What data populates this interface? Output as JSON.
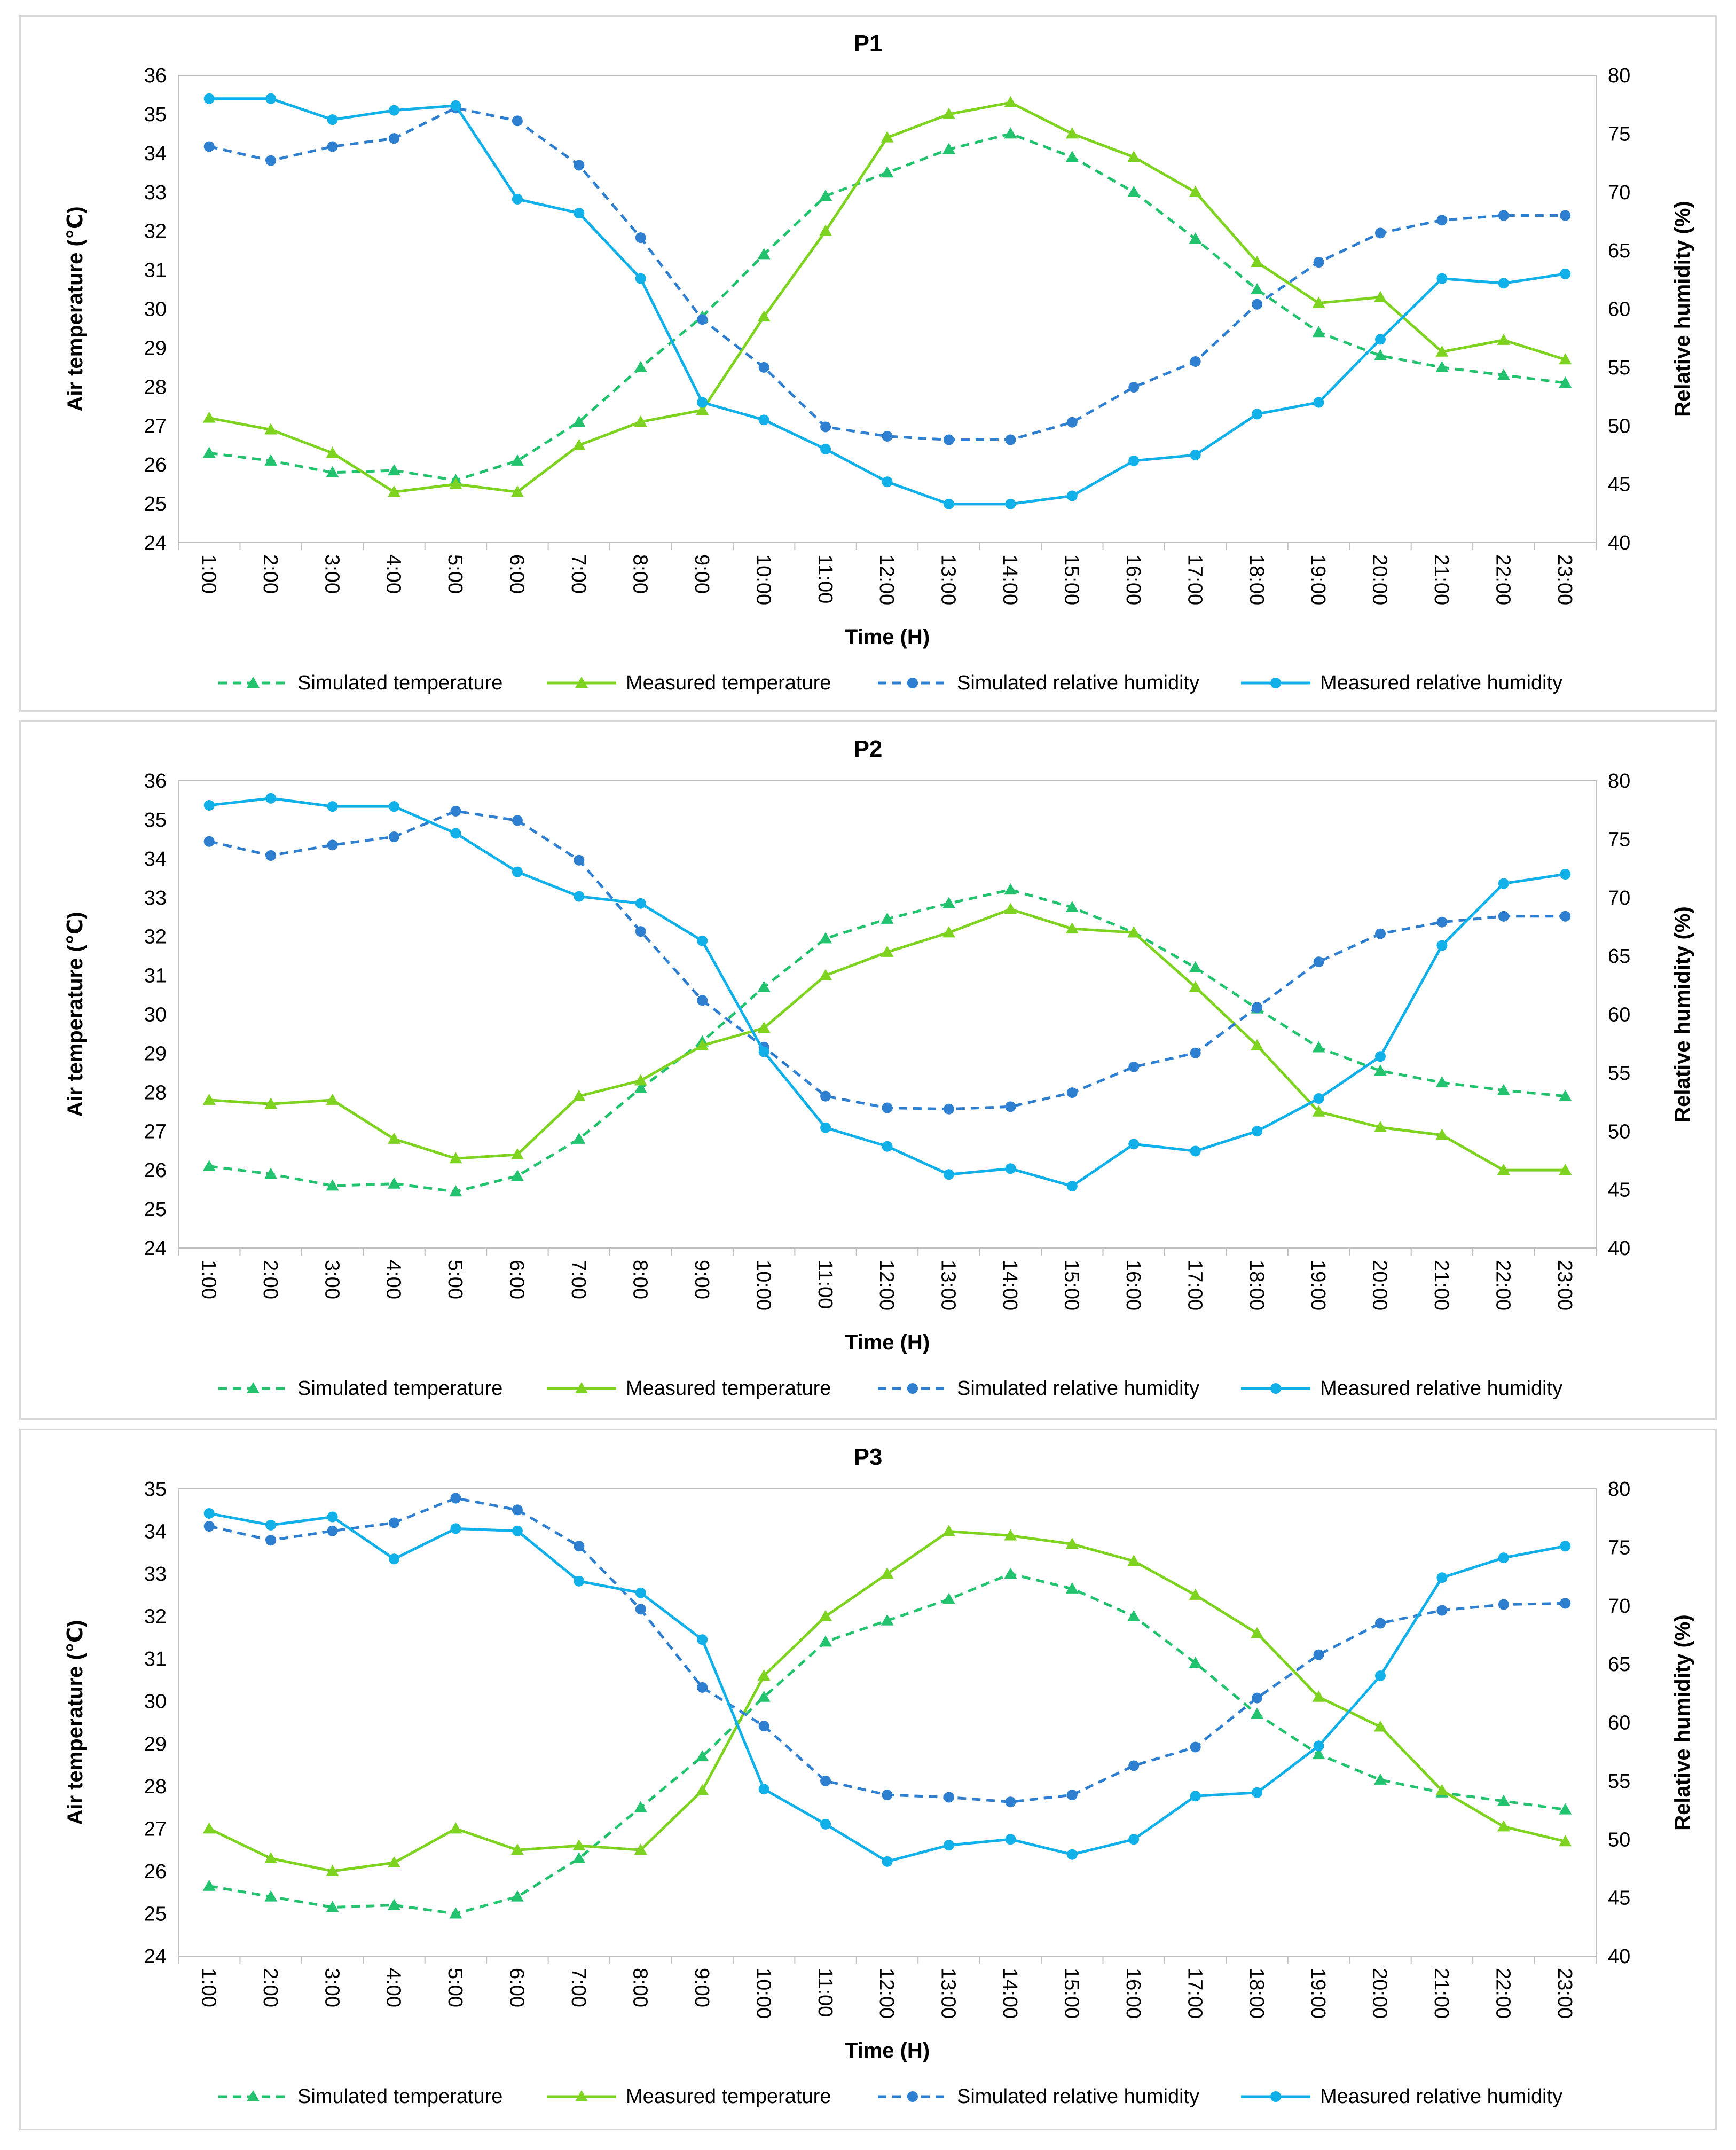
{
  "colors": {
    "sim_temp": "#23c26e",
    "meas_temp": "#7ed321",
    "sim_rh": "#2f7fd1",
    "meas_rh": "#12b0e8"
  },
  "chart_data": [
    {
      "type": "line",
      "title": "P1",
      "xlabel": "Time (H)",
      "ylabel": "Air temperature (℃)",
      "y2label": "Relative humidity (%)",
      "categories": [
        "1:00",
        "2:00",
        "3:00",
        "4:00",
        "5:00",
        "6:00",
        "7:00",
        "8:00",
        "9:00",
        "10:00",
        "11:00",
        "12:00",
        "13:00",
        "14:00",
        "15:00",
        "16:00",
        "17:00",
        "18:00",
        "19:00",
        "20:00",
        "21:00",
        "22:00",
        "23:00"
      ],
      "ylim": [
        24,
        36
      ],
      "yticks": [
        24,
        25,
        26,
        27,
        28,
        29,
        30,
        31,
        32,
        33,
        34,
        35,
        36
      ],
      "y2lim": [
        40,
        80
      ],
      "y2ticks": [
        40,
        45,
        50,
        55,
        60,
        65,
        70,
        75,
        80
      ],
      "legend_position": "bottom",
      "series": [
        {
          "name": "Simulated temperature",
          "axis": "left",
          "style": "dashed",
          "marker": "triangle",
          "color_key": "sim_temp",
          "values": [
            26.3,
            26.1,
            25.8,
            25.85,
            25.6,
            26.1,
            27.1,
            28.5,
            29.8,
            31.4,
            32.9,
            33.5,
            34.1,
            34.5,
            33.9,
            33.0,
            31.8,
            30.5,
            29.4,
            28.8,
            28.5,
            28.3,
            28.1
          ]
        },
        {
          "name": "Measured temperature",
          "axis": "left",
          "style": "solid",
          "marker": "triangle",
          "color_key": "meas_temp",
          "values": [
            27.2,
            26.9,
            26.3,
            25.3,
            25.5,
            25.3,
            26.5,
            27.1,
            27.4,
            29.8,
            32.0,
            34.4,
            35.0,
            35.3,
            34.5,
            33.9,
            33.0,
            31.2,
            30.15,
            30.3,
            28.9,
            29.2,
            28.7
          ]
        },
        {
          "name": "Simulated relative humidity",
          "axis": "right",
          "style": "dashed",
          "marker": "circle",
          "color_key": "sim_rh",
          "values": [
            73.9,
            72.7,
            73.9,
            74.6,
            77.2,
            76.1,
            72.3,
            66.1,
            59.1,
            55.0,
            49.9,
            49.1,
            48.8,
            48.8,
            50.3,
            53.3,
            55.5,
            60.4,
            64.0,
            66.5,
            67.6,
            68.0,
            68.0
          ]
        },
        {
          "name": "Measured relative humidity",
          "axis": "right",
          "style": "solid",
          "marker": "circle",
          "color_key": "meas_rh",
          "values": [
            78.0,
            78.0,
            76.2,
            77.0,
            77.4,
            69.4,
            68.2,
            62.6,
            52.0,
            50.5,
            48.0,
            45.2,
            43.3,
            43.3,
            44.0,
            47.0,
            47.5,
            51.0,
            52.0,
            57.4,
            62.6,
            62.2,
            63.0
          ]
        }
      ]
    },
    {
      "type": "line",
      "title": "P2",
      "xlabel": "Time (H)",
      "ylabel": "Air temperature (℃)",
      "y2label": "Relative humidity (%)",
      "categories": [
        "1:00",
        "2:00",
        "3:00",
        "4:00",
        "5:00",
        "6:00",
        "7:00",
        "8:00",
        "9:00",
        "10:00",
        "11:00",
        "12:00",
        "13:00",
        "14:00",
        "15:00",
        "16:00",
        "17:00",
        "18:00",
        "19:00",
        "20:00",
        "21:00",
        "22:00",
        "23:00"
      ],
      "ylim": [
        24,
        36
      ],
      "yticks": [
        24,
        25,
        26,
        27,
        28,
        29,
        30,
        31,
        32,
        33,
        34,
        35,
        36
      ],
      "y2lim": [
        40,
        80
      ],
      "y2ticks": [
        40,
        45,
        50,
        55,
        60,
        65,
        70,
        75,
        80
      ],
      "legend_position": "bottom",
      "series": [
        {
          "name": "Simulated temperature",
          "axis": "left",
          "style": "dashed",
          "marker": "triangle",
          "color_key": "sim_temp",
          "values": [
            26.1,
            25.9,
            25.6,
            25.65,
            25.45,
            25.85,
            26.8,
            28.1,
            29.3,
            30.7,
            31.95,
            32.45,
            32.85,
            33.2,
            32.75,
            32.1,
            31.2,
            30.15,
            29.15,
            28.55,
            28.25,
            28.05,
            27.9
          ]
        },
        {
          "name": "Measured temperature",
          "axis": "left",
          "style": "solid",
          "marker": "triangle",
          "color_key": "meas_temp",
          "values": [
            27.8,
            27.7,
            27.8,
            26.8,
            26.3,
            26.4,
            27.9,
            28.3,
            29.2,
            29.65,
            31.0,
            31.6,
            32.1,
            32.7,
            32.2,
            32.1,
            30.7,
            29.2,
            27.5,
            27.1,
            26.9,
            26.0,
            26.0
          ]
        },
        {
          "name": "Simulated relative humidity",
          "axis": "right",
          "style": "dashed",
          "marker": "circle",
          "color_key": "sim_rh",
          "values": [
            74.8,
            73.6,
            74.5,
            75.2,
            77.4,
            76.6,
            73.2,
            67.1,
            61.2,
            57.2,
            53.0,
            52.0,
            51.9,
            52.1,
            53.3,
            55.5,
            56.7,
            60.6,
            64.5,
            66.9,
            67.9,
            68.4,
            68.4
          ]
        },
        {
          "name": "Measured relative humidity",
          "axis": "right",
          "style": "solid",
          "marker": "circle",
          "color_key": "meas_rh",
          "values": [
            77.9,
            78.5,
            77.8,
            77.8,
            75.5,
            72.2,
            70.1,
            69.5,
            66.3,
            56.8,
            50.3,
            48.7,
            46.3,
            46.8,
            45.3,
            48.9,
            48.3,
            50.0,
            52.8,
            56.4,
            65.9,
            71.2,
            72.0
          ]
        }
      ]
    },
    {
      "type": "line",
      "title": "P3",
      "xlabel": "Time (H)",
      "ylabel": "Air temperature (℃)",
      "y2label": "Relative humidity (%)",
      "categories": [
        "1:00",
        "2:00",
        "3:00",
        "4:00",
        "5:00",
        "6:00",
        "7:00",
        "8:00",
        "9:00",
        "10:00",
        "11:00",
        "12:00",
        "13:00",
        "14:00",
        "15:00",
        "16:00",
        "17:00",
        "18:00",
        "19:00",
        "20:00",
        "21:00",
        "22:00",
        "23:00"
      ],
      "ylim": [
        24,
        35
      ],
      "yticks": [
        24,
        25,
        26,
        27,
        28,
        29,
        30,
        31,
        32,
        33,
        34,
        35
      ],
      "y2lim": [
        40,
        80
      ],
      "y2ticks": [
        40,
        45,
        50,
        55,
        60,
        65,
        70,
        75,
        80
      ],
      "legend_position": "bottom",
      "series": [
        {
          "name": "Simulated temperature",
          "axis": "left",
          "style": "dashed",
          "marker": "triangle",
          "color_key": "sim_temp",
          "values": [
            25.65,
            25.4,
            25.15,
            25.2,
            25.0,
            25.4,
            26.3,
            27.5,
            28.7,
            30.1,
            31.4,
            31.9,
            32.4,
            33.0,
            32.65,
            32.0,
            30.9,
            29.7,
            28.75,
            28.15,
            27.85,
            27.65,
            27.45
          ]
        },
        {
          "name": "Measured temperature",
          "axis": "left",
          "style": "solid",
          "marker": "triangle",
          "color_key": "meas_temp",
          "values": [
            27.0,
            26.3,
            26.0,
            26.2,
            27.0,
            26.5,
            26.6,
            26.5,
            27.9,
            30.6,
            32.0,
            33.0,
            34.0,
            33.9,
            33.7,
            33.3,
            32.5,
            31.6,
            30.1,
            29.4,
            27.9,
            27.05,
            26.7
          ]
        },
        {
          "name": "Simulated relative humidity",
          "axis": "right",
          "style": "dashed",
          "marker": "circle",
          "color_key": "sim_rh",
          "values": [
            76.8,
            75.6,
            76.4,
            77.1,
            79.2,
            78.2,
            75.1,
            69.7,
            63.0,
            59.7,
            55.0,
            53.8,
            53.6,
            53.2,
            53.8,
            56.3,
            57.9,
            62.1,
            65.8,
            68.5,
            69.6,
            70.1,
            70.2
          ]
        },
        {
          "name": "Measured relative humidity",
          "axis": "right",
          "style": "solid",
          "marker": "circle",
          "color_key": "meas_rh",
          "values": [
            77.9,
            76.9,
            77.6,
            74.0,
            76.6,
            76.4,
            72.1,
            71.1,
            67.1,
            54.3,
            51.3,
            48.1,
            49.5,
            50.0,
            48.7,
            50.0,
            53.7,
            54.0,
            58.0,
            64.0,
            72.4,
            74.1,
            75.1
          ]
        }
      ]
    }
  ]
}
